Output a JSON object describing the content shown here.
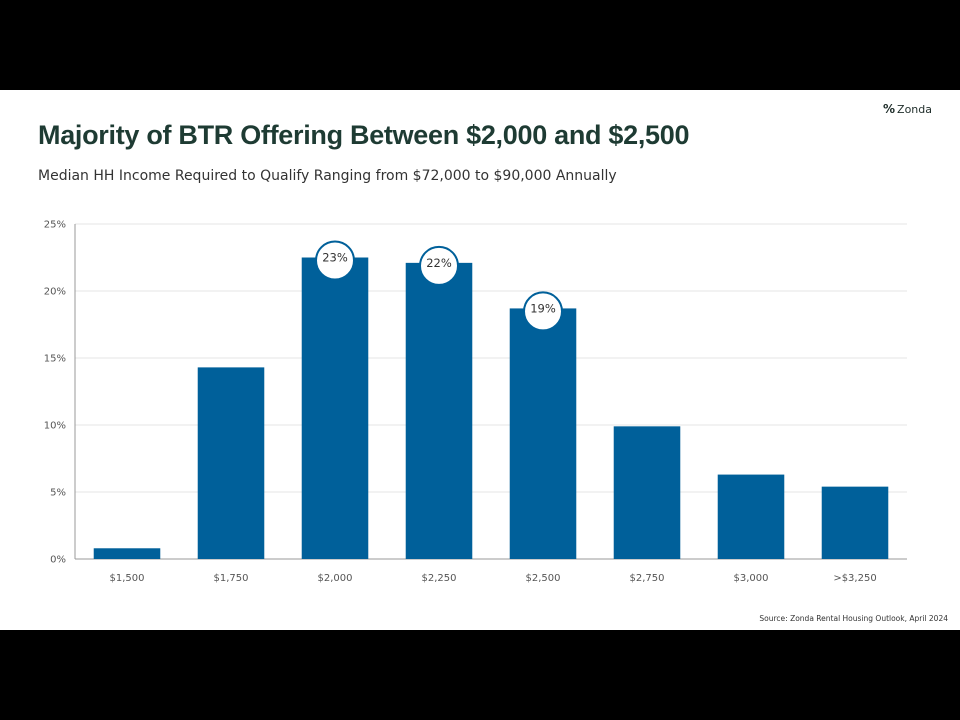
{
  "header": {
    "logo_text": "Zonda",
    "title": "Majority of BTR Offering Between $2,000 and $2,500",
    "subtitle": "Median HH Income Required  to Qualify Ranging  from $72,000  to $90,000  Annually"
  },
  "footer": {
    "source": "Source:  Zonda Rental Housing Outlook, April 2024"
  },
  "colors": {
    "bar": "#00609a",
    "grid": "#e4e4e4",
    "axis": "#999999"
  },
  "chart_data": {
    "type": "bar",
    "categories": [
      "$1,500",
      "$1,750",
      "$2,000",
      "$2,250",
      "$2,500",
      "$2,750",
      "$3,000",
      ">$3,250"
    ],
    "values": [
      0.8,
      14.3,
      22.5,
      22.1,
      18.7,
      9.9,
      6.3,
      5.4
    ],
    "value_labels": [
      "",
      "",
      "23%",
      "22%",
      "19%",
      "",
      "",
      ""
    ],
    "ylim": [
      0,
      25
    ],
    "yticks": [
      0,
      5,
      10,
      15,
      20,
      25
    ],
    "ytick_labels": [
      "0%",
      "5%",
      "10%",
      "15%",
      "20%",
      "25%"
    ],
    "grid": true,
    "legend": "none"
  }
}
